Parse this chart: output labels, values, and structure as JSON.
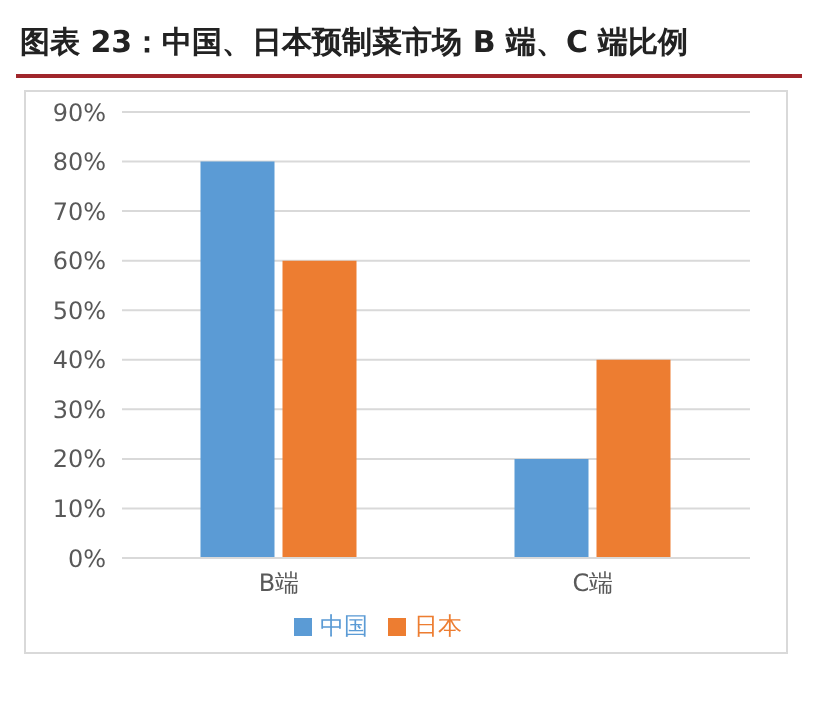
{
  "chart_data": {
    "type": "bar",
    "title": "图表 23：中国、日本预制菜市场 B 端、C 端比例",
    "categories": [
      "B端",
      "C端"
    ],
    "series": [
      {
        "name": "中国",
        "color": "#5b9bd5",
        "values": [
          80,
          20
        ]
      },
      {
        "name": "日本",
        "color": "#ed7d31",
        "values": [
          60,
          40
        ]
      }
    ],
    "ylim": [
      0,
      90
    ],
    "yticks": [
      {
        "value": 0,
        "label": "0%"
      },
      {
        "value": 10,
        "label": "10%"
      },
      {
        "value": 20,
        "label": "20%"
      },
      {
        "value": 30,
        "label": "30%"
      },
      {
        "value": 40,
        "label": "40%"
      },
      {
        "value": 50,
        "label": "50%"
      },
      {
        "value": 60,
        "label": "60%"
      },
      {
        "value": 70,
        "label": "70%"
      },
      {
        "value": 80,
        "label": "80%"
      },
      {
        "value": 90,
        "label": "90%"
      }
    ],
    "grid": "y",
    "legend": "bottom"
  }
}
